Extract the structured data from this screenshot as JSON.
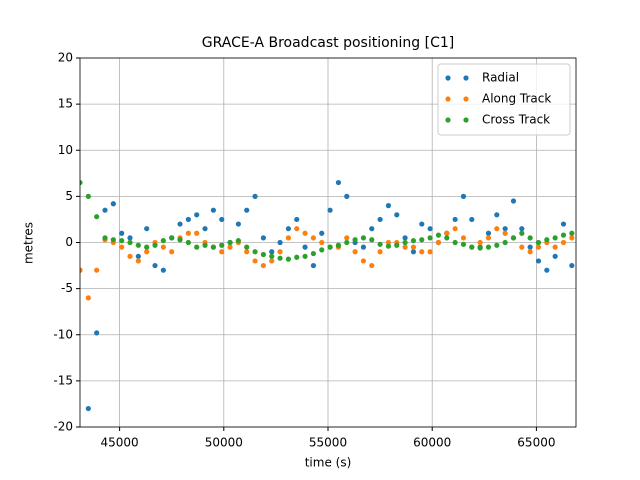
{
  "chart_data": {
    "type": "scatter",
    "title": "GRACE-A Broadcast positioning [C1]",
    "xlabel": "time (s)",
    "ylabel": "metres",
    "x": [
      43100,
      43500,
      43900,
      44300,
      44700,
      45100,
      45500,
      45900,
      46300,
      46700,
      47100,
      47500,
      47900,
      48300,
      48700,
      49100,
      49500,
      49900,
      50300,
      50700,
      51100,
      51500,
      51900,
      52300,
      52700,
      53100,
      53500,
      53900,
      54300,
      54700,
      55100,
      55500,
      55900,
      56300,
      56700,
      57100,
      57500,
      57900,
      58300,
      58700,
      59100,
      59500,
      59900,
      60300,
      60700,
      61100,
      61500,
      61900,
      62300,
      62700,
      63100,
      63500,
      63900,
      64300,
      64700,
      65100,
      65500,
      65900,
      66300,
      66700
    ],
    "series": [
      {
        "name": "Radial",
        "color": "#1f77b4",
        "values": [
          -3,
          -18,
          -9.8,
          3.5,
          4.2,
          1,
          0.5,
          -1.5,
          1.5,
          -2.5,
          -3,
          0.5,
          2,
          2.5,
          3,
          1.5,
          3.5,
          2.5,
          0,
          2,
          3.5,
          5,
          0.5,
          -1,
          0,
          1.5,
          2.5,
          -0.5,
          -2.5,
          1,
          3.5,
          6.5,
          5,
          0,
          -0.5,
          1.5,
          2.5,
          4,
          3,
          0.5,
          -1,
          2,
          1.5,
          0,
          1,
          2.5,
          5,
          2.5,
          -0.5,
          1,
          3,
          1.5,
          4.5,
          1.5,
          -0.5,
          -2,
          -3,
          -1.5,
          2,
          -2.5
        ]
      },
      {
        "name": "Along Track",
        "color": "#ff7f0e",
        "values": [
          -3,
          -6,
          -3,
          0.3,
          0,
          -0.5,
          -1.5,
          -2,
          -1,
          0,
          -0.5,
          -1,
          0.5,
          1,
          1,
          0,
          -0.5,
          -1,
          -0.5,
          0,
          -1,
          -2,
          -2.5,
          -2,
          -1,
          0.5,
          1.5,
          1,
          0.5,
          0,
          -0.5,
          -0.5,
          0.5,
          -1,
          -2,
          -2.5,
          -1,
          0,
          0,
          -0.5,
          -0.5,
          -1,
          -1,
          0,
          1,
          1.5,
          0.5,
          -0.5,
          0,
          0.5,
          1.5,
          1,
          0.5,
          -0.5,
          -1,
          -0.5,
          0,
          -0.5,
          0,
          0.5
        ]
      },
      {
        "name": "Cross Track",
        "color": "#2ca02c",
        "values": [
          6.5,
          5,
          2.8,
          0.5,
          0.3,
          0.2,
          0,
          -0.3,
          -0.5,
          -0.3,
          0.2,
          0.5,
          0.3,
          0,
          -0.5,
          -0.3,
          -0.5,
          -0.3,
          0,
          0.2,
          -0.5,
          -1,
          -1.3,
          -1.5,
          -1.7,
          -1.8,
          -1.6,
          -1.5,
          -1.2,
          -0.8,
          -0.5,
          -0.3,
          0,
          0.3,
          0.5,
          0.3,
          -0.2,
          -0.4,
          -0.3,
          0,
          0.2,
          0.3,
          0.5,
          0.8,
          0.5,
          0,
          -0.2,
          -0.5,
          -0.6,
          -0.5,
          -0.3,
          0,
          0.5,
          1,
          0.5,
          0,
          0.3,
          0.5,
          0.8,
          1
        ]
      }
    ],
    "xlim": [
      43100,
      66900
    ],
    "xticks": [
      45000,
      50000,
      55000,
      60000,
      65000
    ],
    "ylim": [
      -20,
      20
    ],
    "yticks": [
      -20,
      -15,
      -10,
      -5,
      0,
      5,
      10,
      15,
      20
    ],
    "grid": true,
    "legend": "upper right"
  }
}
